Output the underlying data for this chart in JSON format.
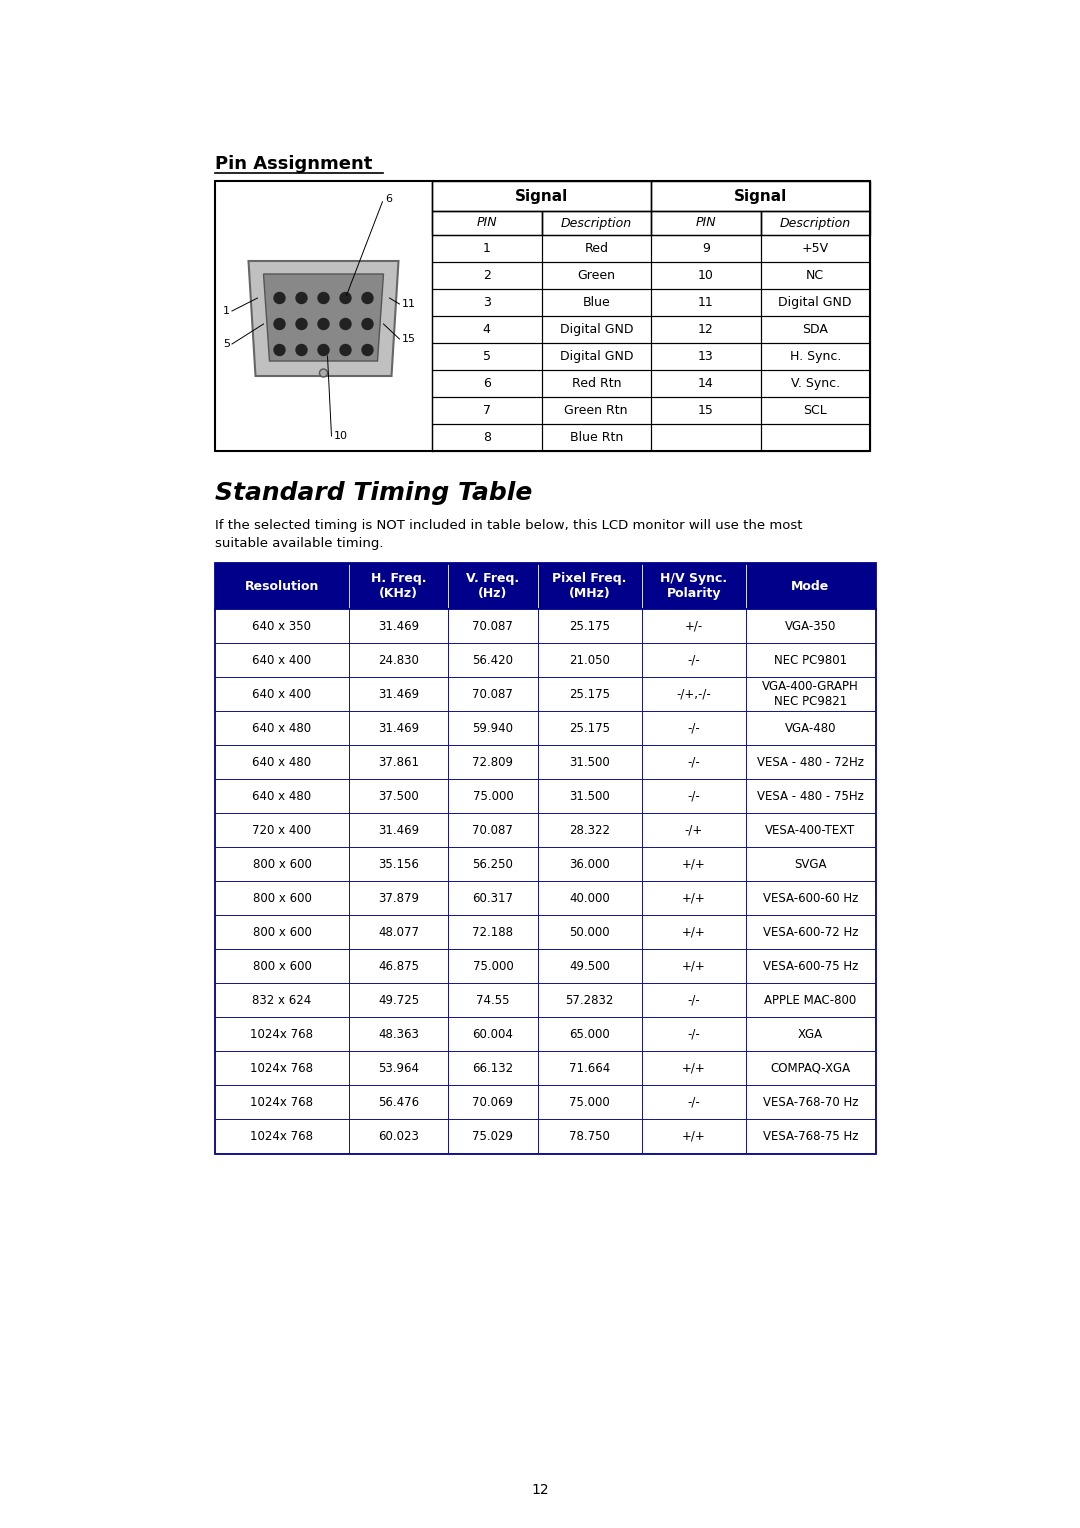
{
  "page_bg": "#ffffff",
  "page_num": "12",
  "pin_assignment_title": "Pin Assignment",
  "pin_table_rows": [
    [
      "1",
      "Red",
      "9",
      "+5V"
    ],
    [
      "2",
      "Green",
      "10",
      "NC"
    ],
    [
      "3",
      "Blue",
      "11",
      "Digital GND"
    ],
    [
      "4",
      "Digital GND",
      "12",
      "SDA"
    ],
    [
      "5",
      "Digital GND",
      "13",
      "H. Sync."
    ],
    [
      "6",
      "Red Rtn",
      "14",
      "V. Sync."
    ],
    [
      "7",
      "Green Rtn",
      "15",
      "SCL"
    ],
    [
      "8",
      "Blue Rtn",
      "",
      ""
    ]
  ],
  "timing_title": "Standard Timing Table",
  "timing_subtitle1": "If the selected timing is NOT included in table below, this LCD monitor will use the most",
  "timing_subtitle2": "suitable available timing.",
  "timing_header_bg": "#00008B",
  "timing_header_fg": "#ffffff",
  "timing_border_color": "#00008B",
  "timing_col_headers": [
    "Resolution",
    "H. Freq.\n(KHz)",
    "V. Freq.\n(Hz)",
    "Pixel Freq.\n(MHz)",
    "H/V Sync.\nPolarity",
    "Mode"
  ],
  "timing_rows": [
    [
      "640 x 350",
      "31.469",
      "70.087",
      "25.175",
      "+/-",
      "VGA-350"
    ],
    [
      "640 x 400",
      "24.830",
      "56.420",
      "21.050",
      "-/-",
      "NEC PC9801"
    ],
    [
      "640 x 400",
      "31.469",
      "70.087",
      "25.175",
      "-/+,-/-",
      "VGA-400-GRAPH\nNEC PC9821"
    ],
    [
      "640 x 480",
      "31.469",
      "59.940",
      "25.175",
      "-/-",
      "VGA-480"
    ],
    [
      "640 x 480",
      "37.861",
      "72.809",
      "31.500",
      "-/-",
      "VESA - 480 - 72Hz"
    ],
    [
      "640 x 480",
      "37.500",
      "75.000",
      "31.500",
      "-/-",
      "VESA - 480 - 75Hz"
    ],
    [
      "720 x 400",
      "31.469",
      "70.087",
      "28.322",
      "-/+",
      "VESA-400-TEXT"
    ],
    [
      "800 x 600",
      "35.156",
      "56.250",
      "36.000",
      "+/+",
      "SVGA"
    ],
    [
      "800 x 600",
      "37.879",
      "60.317",
      "40.000",
      "+/+",
      "VESA-600-60 Hz"
    ],
    [
      "800 x 600",
      "48.077",
      "72.188",
      "50.000",
      "+/+",
      "VESA-600-72 Hz"
    ],
    [
      "800 x 600",
      "46.875",
      "75.000",
      "49.500",
      "+/+",
      "VESA-600-75 Hz"
    ],
    [
      "832 x 624",
      "49.725",
      "74.55",
      "57.2832",
      "-/-",
      "APPLE MAC-800"
    ],
    [
      "1024x 768",
      "48.363",
      "60.004",
      "65.000",
      "-/-",
      "XGA"
    ],
    [
      "1024x 768",
      "53.964",
      "66.132",
      "71.664",
      "+/+",
      "COMPAQ-XGA"
    ],
    [
      "1024x 768",
      "56.476",
      "70.069",
      "75.000",
      "-/-",
      "VESA-768-70 Hz"
    ],
    [
      "1024x 768",
      "60.023",
      "75.029",
      "78.750",
      "+/+",
      "VESA-768-75 Hz"
    ]
  ]
}
